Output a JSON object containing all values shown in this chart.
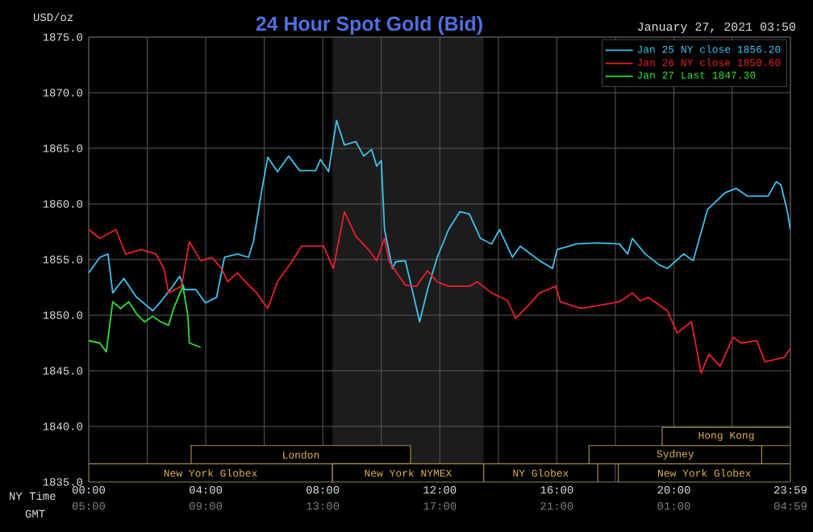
{
  "chart_data": {
    "type": "line",
    "title": "24 Hour Spot Gold (Bid)",
    "subtitle": "January 27, 2021 03:50",
    "ylabel": "USD/oz",
    "xlabel": "NY Time",
    "x2label": "GMT",
    "xlim": [
      0,
      23.983
    ],
    "ylim": [
      1835,
      1875
    ],
    "xticks": [
      {
        "value": 0,
        "label": "00:00"
      },
      {
        "value": 4,
        "label": "04:00"
      },
      {
        "value": 8,
        "label": "08:00"
      },
      {
        "value": 12,
        "label": "12:00"
      },
      {
        "value": 16,
        "label": "16:00"
      },
      {
        "value": 20,
        "label": "20:00"
      },
      {
        "value": 23.983,
        "label": "23:59"
      }
    ],
    "x2lim": [
      "2021-01-26T05:00",
      "2021-01-27T04:59"
    ],
    "x2ticks": [
      {
        "value": "2021-01-26T05:00",
        "label": "05:00"
      },
      {
        "value": "2021-01-26T09:00",
        "label": "09:00"
      },
      {
        "value": "2021-01-26T13:00",
        "label": "13:00"
      },
      {
        "value": "2021-01-26T17:00",
        "label": "17:00"
      },
      {
        "value": "2021-01-26T21:00",
        "label": "21:00"
      },
      {
        "value": "2021-01-27T01:00",
        "label": "01:00"
      },
      {
        "value": "2021-01-27T04:59",
        "label": "04:59"
      }
    ],
    "yticks": [
      {
        "value": 1835,
        "label": "1835.0"
      },
      {
        "value": 1840,
        "label": "1840.0"
      },
      {
        "value": 1845,
        "label": "1845.0"
      },
      {
        "value": 1850,
        "label": "1850.0"
      },
      {
        "value": 1855,
        "label": "1855.0"
      },
      {
        "value": 1860,
        "label": "1860.0"
      },
      {
        "value": 1865,
        "label": "1865.0"
      },
      {
        "value": 1870,
        "label": "1870.0"
      },
      {
        "value": 1875,
        "label": "1875.0"
      }
    ],
    "grid": true,
    "legend": "top right",
    "marker": "none",
    "line_style": "solid",
    "bands": [
      {
        "axis": "x",
        "from": 8.33,
        "to": 13.5,
        "color": "#1c1c1c"
      },
      {
        "axis": "x",
        "from": 0,
        "to": 8.33,
        "label": "New York Globex"
      },
      {
        "axis": "x",
        "from": 3.5,
        "to": 11.0,
        "label": "London"
      },
      {
        "axis": "x",
        "from": 8.33,
        "to": 13.5,
        "label": "New York NYMEX"
      },
      {
        "axis": "x",
        "from": 13.5,
        "to": 17.4,
        "label": "NY Globex"
      },
      {
        "axis": "x",
        "from": 18.1,
        "to": 23.983,
        "label": "New York Globex"
      },
      {
        "axis": "x",
        "from": 17.1,
        "to": 23.0,
        "label": "Sydney"
      },
      {
        "axis": "x",
        "from": 19.6,
        "to": 23.983,
        "label": "Hong Kong"
      }
    ],
    "series": [
      {
        "name": "Jan 25 NY close 1856.20",
        "color": "#40c0f0",
        "x": [
          0,
          0.38,
          0.66,
          0.82,
          1.2,
          1.64,
          2.19,
          2.46,
          2.9,
          3.11,
          3.28,
          3.66,
          3.99,
          4.37,
          4.64,
          5.08,
          5.46,
          5.63,
          5.9,
          6.12,
          6.45,
          6.83,
          7.21,
          7.76,
          7.92,
          8.2,
          8.47,
          8.74,
          9.13,
          9.4,
          9.67,
          9.84,
          10.0,
          10.11,
          10.38,
          10.49,
          10.82,
          11.09,
          11.31,
          11.58,
          11.91,
          12.3,
          12.68,
          13.01,
          13.39,
          13.77,
          14.04,
          14.48,
          14.75,
          15.41,
          15.85,
          16.01,
          16.67,
          17.38,
          18.14,
          18.42,
          18.58,
          19.02,
          19.51,
          19.78,
          20.33,
          20.66,
          21.15,
          21.75,
          22.13,
          22.51,
          23.22,
          23.5,
          23.66,
          23.88,
          23.98
        ],
        "values": [
          1853.8,
          1855.2,
          1855.5,
          1852.0,
          1853.3,
          1851.6,
          1850.4,
          1851.2,
          1852.7,
          1853.5,
          1852.3,
          1852.3,
          1851.1,
          1851.6,
          1855.2,
          1855.5,
          1855.2,
          1856.6,
          1861.0,
          1864.2,
          1862.9,
          1864.3,
          1863.0,
          1863.0,
          1864.0,
          1862.9,
          1867.5,
          1865.3,
          1865.6,
          1864.3,
          1864.9,
          1863.4,
          1863.9,
          1857.7,
          1854.2,
          1854.8,
          1854.9,
          1851.9,
          1849.4,
          1852.3,
          1855.2,
          1857.7,
          1859.3,
          1859.1,
          1856.9,
          1856.4,
          1857.7,
          1855.2,
          1856.2,
          1854.9,
          1854.2,
          1855.9,
          1856.4,
          1856.5,
          1856.4,
          1855.5,
          1856.9,
          1855.5,
          1854.5,
          1854.2,
          1855.5,
          1854.9,
          1859.5,
          1861.0,
          1861.4,
          1860.7,
          1860.7,
          1862.0,
          1861.7,
          1859.3,
          1857.7
        ]
      },
      {
        "name": "Jan 26 NY close 1850.60",
        "color": "#e8202a",
        "x": [
          0,
          0.38,
          0.93,
          1.26,
          1.8,
          2.3,
          2.57,
          2.73,
          3.17,
          3.44,
          3.83,
          4.21,
          4.54,
          4.75,
          5.08,
          5.36,
          5.74,
          6.12,
          6.45,
          6.94,
          7.27,
          8.03,
          8.36,
          8.74,
          9.13,
          9.56,
          9.84,
          10.11,
          10.27,
          10.82,
          11.2,
          11.58,
          11.91,
          12.3,
          13.01,
          13.28,
          13.77,
          14.32,
          14.59,
          15.03,
          15.41,
          15.96,
          16.12,
          16.83,
          18.14,
          18.58,
          18.85,
          19.13,
          19.78,
          20.11,
          20.6,
          20.93,
          21.2,
          21.58,
          22.02,
          22.3,
          22.84,
          23.11,
          23.77,
          23.98
        ],
        "values": [
          1857.7,
          1856.9,
          1857.7,
          1855.5,
          1855.9,
          1855.5,
          1854.2,
          1852.0,
          1852.6,
          1856.6,
          1854.9,
          1855.2,
          1854.2,
          1853.0,
          1853.8,
          1853.0,
          1852.0,
          1850.6,
          1853.0,
          1854.8,
          1856.2,
          1856.2,
          1854.2,
          1859.3,
          1857.1,
          1855.9,
          1854.9,
          1856.9,
          1854.8,
          1852.7,
          1852.6,
          1854.0,
          1853.0,
          1852.6,
          1852.6,
          1853.0,
          1852.0,
          1851.3,
          1849.7,
          1850.9,
          1852.0,
          1852.6,
          1851.2,
          1850.6,
          1851.2,
          1852.0,
          1851.3,
          1851.6,
          1850.4,
          1848.4,
          1849.4,
          1844.8,
          1846.5,
          1845.4,
          1848.0,
          1847.5,
          1847.7,
          1845.8,
          1846.2,
          1847.0
        ]
      },
      {
        "name": "Jan 27 Last 1847.30",
        "color": "#30e030",
        "x": [
          0,
          0.38,
          0.6,
          0.82,
          1.09,
          1.37,
          1.64,
          1.91,
          2.19,
          2.46,
          2.73,
          2.9,
          3.22,
          3.39,
          3.44,
          3.83
        ],
        "values": [
          1847.7,
          1847.5,
          1846.7,
          1851.2,
          1850.6,
          1851.2,
          1850.1,
          1849.4,
          1849.9,
          1849.4,
          1849.1,
          1850.6,
          1852.6,
          1849.9,
          1847.5,
          1847.1
        ]
      }
    ]
  }
}
